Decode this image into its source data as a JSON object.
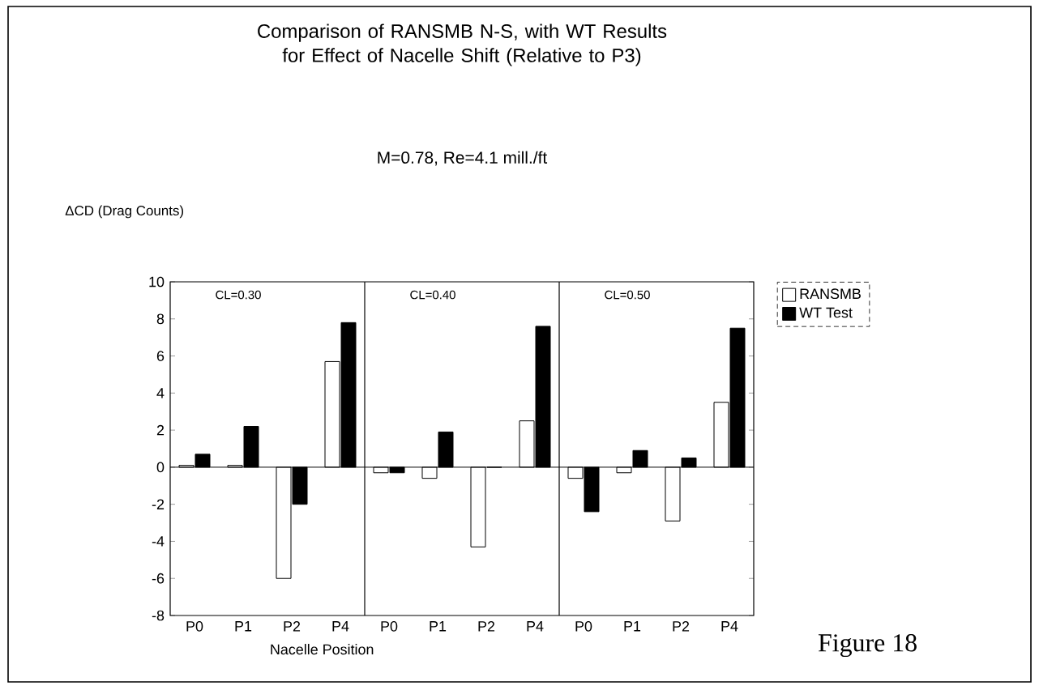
{
  "chart_data": {
    "type": "bar",
    "title": "Comparison of RANSMB N-S, with WT Results for Effect of Nacelle Shift (Relative to P3)",
    "subtitle": "M=0.78, Re=4.1 mill./ft",
    "ylabel": "ΔCD (Drag Counts)",
    "xlabel": "Nacelle Position",
    "categories": [
      "P0",
      "P1",
      "P2",
      "P4",
      "P0",
      "P1",
      "P2",
      "P4",
      "P0",
      "P1",
      "P2",
      "P4"
    ],
    "series": [
      {
        "name": "RANSMB",
        "color": "#ffffff",
        "values": [
          0.1,
          0.1,
          -6.0,
          5.7,
          -0.3,
          -0.6,
          -4.3,
          2.5,
          -0.6,
          -0.3,
          -2.9,
          3.5
        ]
      },
      {
        "name": "WT Test",
        "color": "#000000",
        "values": [
          0.7,
          2.2,
          -2.0,
          7.8,
          -0.3,
          1.9,
          0.0,
          7.6,
          -2.4,
          0.9,
          0.5,
          7.5
        ]
      }
    ],
    "ylim": [
      -8,
      10
    ],
    "yticks": [
      -8,
      -6,
      -4,
      -2,
      0,
      2,
      4,
      6,
      8,
      10
    ],
    "legend": "top right",
    "annotations": [
      "CL=0.30",
      "CL=0.40",
      "CL=0.50",
      "Figure 18"
    ],
    "ref_lines": [
      {
        "axis": "y",
        "value": 0
      }
    ]
  }
}
